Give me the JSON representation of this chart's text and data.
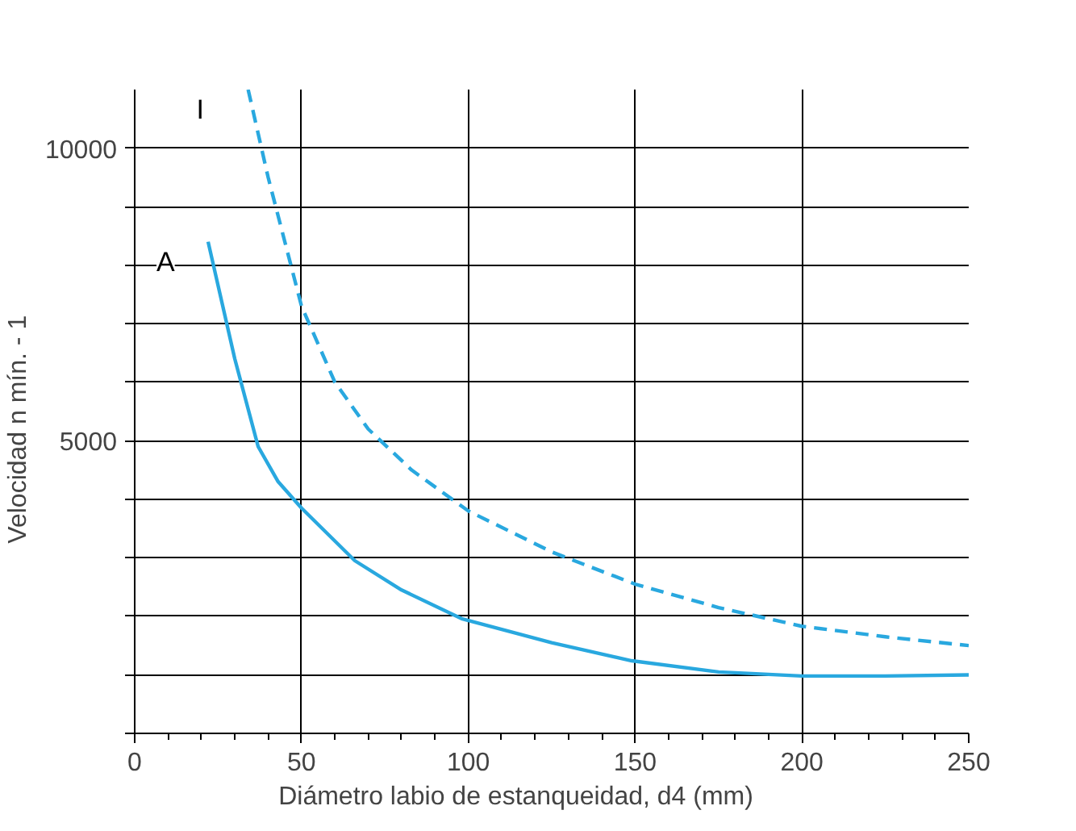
{
  "chart_data": {
    "type": "line",
    "xlabel": "Diámetro labio de estanqueidad,  d4          (mm)",
    "ylabel": "Velocidad n      mín. - 1",
    "xlim": [
      0,
      250
    ],
    "ylim": [
      0,
      11000
    ],
    "xticks": [
      0,
      50,
      100,
      150,
      200,
      250
    ],
    "yticks": [
      {
        "value": 0,
        "label": null
      },
      {
        "value": 1000,
        "label": null
      },
      {
        "value": 2000,
        "label": null
      },
      {
        "value": 3000,
        "label": null
      },
      {
        "value": 4000,
        "label": null
      },
      5000,
      {
        "value": 6000,
        "label": null
      },
      {
        "value": 7000,
        "label": null
      },
      {
        "value": 8000,
        "label": null
      },
      {
        "value": 9000,
        "label": null
      },
      10000
    ],
    "grid": true,
    "marker": "none",
    "series": [
      {
        "name": "I",
        "color": "#29a8df",
        "line_style": "dashed",
        "x": [
          34,
          40,
          50,
          60,
          70,
          83,
          100,
          125,
          150,
          175,
          200,
          225,
          250
        ],
        "values": [
          11000,
          9500,
          7300,
          6000,
          5200,
          4500,
          3800,
          3100,
          2550,
          2150,
          1830,
          1650,
          1500
        ]
      },
      {
        "name": "A",
        "color": "#29a8df",
        "line_style": "solid",
        "x": [
          22,
          30,
          37,
          43,
          50,
          66,
          80,
          98,
          125,
          149,
          175,
          200,
          225,
          250
        ],
        "values": [
          8400,
          6400,
          4900,
          4300,
          3850,
          2950,
          2450,
          1960,
          1550,
          1240,
          1050,
          980,
          980,
          1000
        ]
      }
    ]
  }
}
